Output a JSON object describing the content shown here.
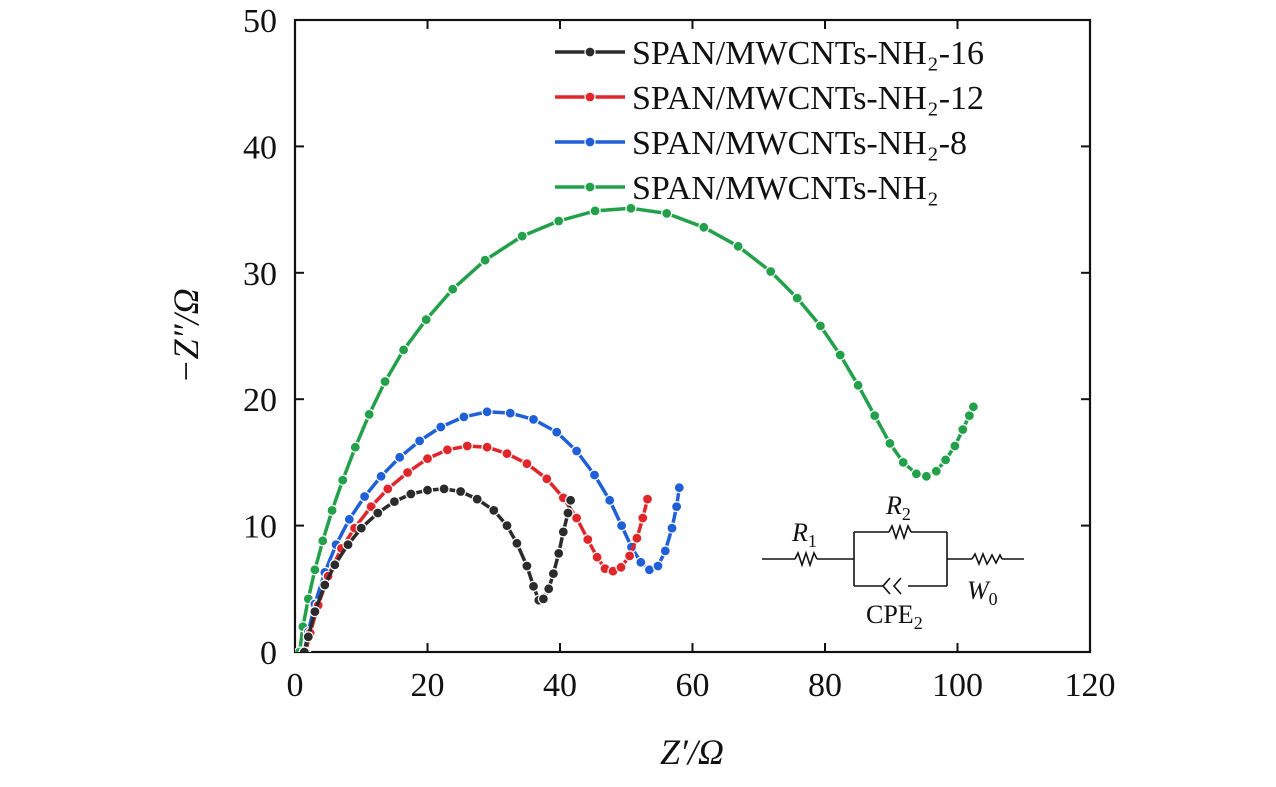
{
  "chart_data": {
    "type": "line",
    "title": "",
    "xlabel": "Z′/Ω",
    "ylabel": "−Z″/Ω",
    "xlim": [
      0,
      120
    ],
    "ylim": [
      0,
      50
    ],
    "xticks": [
      "0",
      "20",
      "40",
      "60",
      "80",
      "100",
      "120"
    ],
    "yticks": [
      "0",
      "10",
      "20",
      "30",
      "40",
      "50"
    ],
    "legend_position": "top-right",
    "series": [
      {
        "name": "SPAN/MWCNTs-NH₂-16",
        "color": "#2b2b2b",
        "points": [
          [
            1.4,
            0
          ],
          [
            2,
            1.2
          ],
          [
            3,
            3.2
          ],
          [
            4.5,
            5.3
          ],
          [
            6,
            6.9
          ],
          [
            8,
            8.5
          ],
          [
            10,
            9.8
          ],
          [
            12.5,
            11
          ],
          [
            15,
            11.9
          ],
          [
            17.5,
            12.5
          ],
          [
            20,
            12.8
          ],
          [
            22.5,
            12.9
          ],
          [
            25,
            12.7
          ],
          [
            27.5,
            12.1
          ],
          [
            30,
            11.2
          ],
          [
            32,
            10
          ],
          [
            33.5,
            8.6
          ],
          [
            35,
            6.8
          ],
          [
            36,
            5.2
          ],
          [
            36.8,
            4.1
          ],
          [
            37.5,
            4.2
          ],
          [
            38.3,
            5
          ],
          [
            39,
            6.2
          ],
          [
            39.8,
            7.8
          ],
          [
            40.5,
            9.5
          ],
          [
            41.2,
            11
          ],
          [
            41.6,
            12
          ]
        ]
      },
      {
        "name": "SPAN/MWCNTs-NH₂-12",
        "color": "#e0262b",
        "points": [
          [
            1.6,
            0
          ],
          [
            2.3,
            1.5
          ],
          [
            3.5,
            3.7
          ],
          [
            5,
            6
          ],
          [
            7,
            8.2
          ],
          [
            9,
            9.8
          ],
          [
            11.5,
            11.5
          ],
          [
            14,
            12.9
          ],
          [
            17,
            14.2
          ],
          [
            20,
            15.3
          ],
          [
            23,
            16
          ],
          [
            26,
            16.3
          ],
          [
            29,
            16.2
          ],
          [
            32,
            15.7
          ],
          [
            35,
            14.9
          ],
          [
            38,
            13.7
          ],
          [
            40.5,
            12.2
          ],
          [
            42.5,
            10.6
          ],
          [
            44.2,
            8.9
          ],
          [
            45.6,
            7.5
          ],
          [
            46.8,
            6.6
          ],
          [
            48,
            6.4
          ],
          [
            49.2,
            6.7
          ],
          [
            50.5,
            7.6
          ],
          [
            51.6,
            9
          ],
          [
            52.5,
            10.6
          ],
          [
            53.2,
            12.1
          ]
        ]
      },
      {
        "name": "SPAN/MWCNTs-NH₂-8",
        "color": "#1f5fd8",
        "points": [
          [
            1.4,
            0
          ],
          [
            2,
            1.6
          ],
          [
            3,
            3.8
          ],
          [
            4.5,
            6.3
          ],
          [
            6.2,
            8.5
          ],
          [
            8.2,
            10.5
          ],
          [
            10.5,
            12.3
          ],
          [
            13,
            13.9
          ],
          [
            15.8,
            15.4
          ],
          [
            18.8,
            16.7
          ],
          [
            22,
            17.8
          ],
          [
            25.5,
            18.6
          ],
          [
            29,
            19
          ],
          [
            32.5,
            18.9
          ],
          [
            36,
            18.4
          ],
          [
            39.5,
            17.4
          ],
          [
            42.5,
            15.9
          ],
          [
            45.2,
            14
          ],
          [
            47.5,
            12
          ],
          [
            49.3,
            10
          ],
          [
            50.8,
            8.3
          ],
          [
            52.2,
            7.1
          ],
          [
            53.5,
            6.5
          ],
          [
            54.8,
            6.8
          ],
          [
            55.9,
            8
          ],
          [
            56.9,
            9.8
          ],
          [
            57.6,
            11.5
          ],
          [
            58,
            13
          ]
        ]
      },
      {
        "name": "SPAN/MWCNTs-NH₂",
        "color": "#22a04a",
        "points": [
          [
            0.7,
            0
          ],
          [
            1.2,
            2
          ],
          [
            2,
            4.2
          ],
          [
            3,
            6.5
          ],
          [
            4.2,
            8.8
          ],
          [
            5.6,
            11.2
          ],
          [
            7.2,
            13.6
          ],
          [
            9.1,
            16.2
          ],
          [
            11.2,
            18.8
          ],
          [
            13.6,
            21.4
          ],
          [
            16.4,
            23.9
          ],
          [
            19.8,
            26.3
          ],
          [
            23.8,
            28.7
          ],
          [
            28.7,
            31
          ],
          [
            34.3,
            32.9
          ],
          [
            39.8,
            34.1
          ],
          [
            45.3,
            34.9
          ],
          [
            50.7,
            35.1
          ],
          [
            56.1,
            34.7
          ],
          [
            61.7,
            33.6
          ],
          [
            66.9,
            32.1
          ],
          [
            71.8,
            30.1
          ],
          [
            75.8,
            28
          ],
          [
            79.3,
            25.8
          ],
          [
            82.3,
            23.5
          ],
          [
            85,
            21.1
          ],
          [
            87.5,
            18.7
          ],
          [
            89.8,
            16.5
          ],
          [
            91.8,
            15
          ],
          [
            93.8,
            14.1
          ],
          [
            95.3,
            13.9
          ],
          [
            96.8,
            14.3
          ],
          [
            98.2,
            15.2
          ],
          [
            99.6,
            16.3
          ],
          [
            100.8,
            17.6
          ],
          [
            101.8,
            18.7
          ],
          [
            102.4,
            19.4
          ]
        ]
      }
    ]
  },
  "circuit": {
    "r1": "R",
    "r1_sub": "1",
    "r2": "R",
    "r2_sub": "2",
    "cpe": "CPE",
    "cpe_sub": "2",
    "w": "W",
    "w_sub": "0"
  }
}
